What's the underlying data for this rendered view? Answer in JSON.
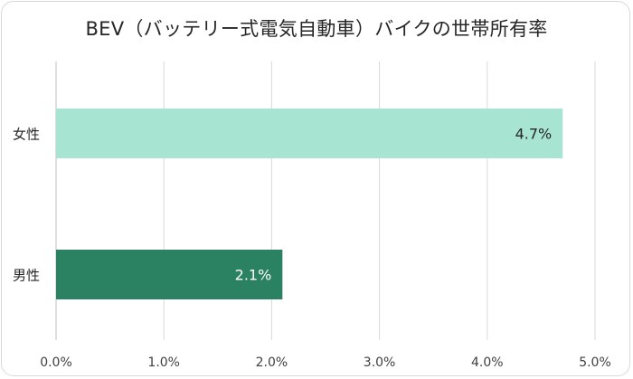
{
  "chart_data": {
    "type": "bar",
    "orientation": "horizontal",
    "title": "BEV（バッテリー式電気自動車）バイクの世帯所有率",
    "categories": [
      "女性",
      "男性"
    ],
    "values": [
      4.7,
      2.1
    ],
    "data_labels": [
      "4.7%",
      "2.1%"
    ],
    "xlim": [
      0,
      5
    ],
    "x_ticks": [
      0,
      1,
      2,
      3,
      4,
      5
    ],
    "x_tick_labels": [
      "0.0%",
      "1.0%",
      "2.0%",
      "3.0%",
      "4.0%",
      "5.0%"
    ],
    "grid": "vertical",
    "colors": [
      "#a8e4d2",
      "#2a8263"
    ],
    "label_colors": [
      "#262626",
      "#ffffff"
    ]
  }
}
